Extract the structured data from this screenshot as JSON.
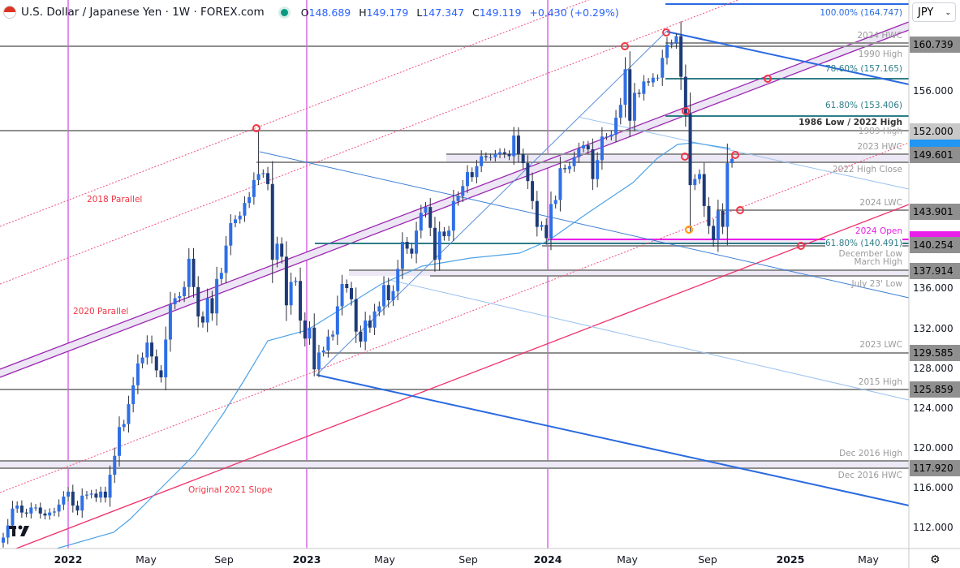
{
  "header": {
    "symbol_title": "U.S. Dollar / Japanese Yen · 1W · FOREX.com",
    "ohlc": {
      "o_label": "O",
      "o": "148.689",
      "h_label": "H",
      "h": "149.179",
      "l_label": "L",
      "l": "147.347",
      "c_label": "C",
      "c": "149.119",
      "change": "+0.430 (+0.29%)"
    }
  },
  "currency_select": {
    "value": "JPY"
  },
  "colors": {
    "bull": "#2f6fe6",
    "bear": "#1d3b78",
    "channel": "#9c27b0",
    "fib": "#2f7d88",
    "level": "#8f8f8f",
    "red": "#f23645",
    "magenta": "#e91ee9",
    "trend_blue": "#2a6ae0",
    "ma": "#4da3e8"
  },
  "level_labels": {
    "fib100": "100.00% (164.747)",
    "hwc2024": "2024 HWC",
    "high1990": "1990 High",
    "fib786": "78.60% (157.165)",
    "fib618_top": "61.80% (153.406)",
    "low1986": "1986 Low / 2022 High",
    "high1989": "1989 High",
    "hwc2023": "2023 HWC",
    "highclose2022": "2022 High Close",
    "lwc2024": "2024 LWC",
    "open2024": "2024 Open",
    "fib618_low": "61.80% (140.491)",
    "dec_low": "December Low",
    "mar_high": "March High",
    "jul23_low": "July 23' Low",
    "lwc2023": "2023 LWC",
    "high2015": "2015 High",
    "dec2016_high": "Dec 2016 High",
    "dec2016_hwc": "Dec 2016 HWC"
  },
  "trend_labels": {
    "p2018": "2018 Parallel",
    "p2020": "2020 Parallel",
    "slope2021": "Original 2021 Slope"
  },
  "price_axis": {
    "ticks": [
      "156.000",
      "136.000",
      "132.000",
      "128.000",
      "124.000",
      "120.000",
      "116.000",
      "112.000"
    ],
    "level_boxes": [
      "160.739",
      "152.000",
      "149.601",
      "143.901",
      "140.254",
      "137.914",
      "129.585",
      "125.859",
      "117.920"
    ]
  },
  "time_axis": [
    "2022",
    "May",
    "Sep",
    "2023",
    "May",
    "Sep",
    "2024",
    "May",
    "Sep",
    "2025",
    "May"
  ],
  "chart_data": {
    "type": "candlestick",
    "interval": "1W",
    "note": "weekly closes approximated from the chart",
    "closes": [
      111.0,
      112.2,
      113.9,
      114.2,
      113.5,
      113.4,
      114.0,
      114.0,
      113.4,
      113.2,
      113.5,
      113.6,
      114.3,
      115.1,
      115.6,
      114.2,
      113.7,
      115.2,
      115.3,
      115.4,
      115.0,
      115.6,
      115.0,
      117.3,
      119.2,
      122.1,
      122.4,
      124.4,
      126.3,
      128.5,
      129.1,
      130.6,
      129.2,
      127.8,
      127.1,
      130.9,
      134.4,
      135.0,
      135.2,
      136.1,
      138.9,
      136.1,
      133.2,
      132.6,
      135.0,
      133.5,
      136.9,
      137.5,
      140.2,
      142.6,
      143.0,
      143.4,
      144.7,
      145.3,
      147.0,
      147.6,
      147.7,
      146.6,
      138.8,
      140.4,
      139.1,
      134.3,
      136.6,
      136.7,
      132.8,
      131.0,
      132.1,
      127.9,
      129.6,
      129.8,
      131.2,
      131.4,
      134.2,
      136.4,
      136.0,
      134.9,
      131.7,
      130.7,
      132.8,
      132.1,
      133.7,
      134.2,
      136.3,
      134.8,
      135.7,
      137.9,
      140.6,
      139.9,
      139.4,
      141.8,
      143.7,
      144.3,
      142.1,
      138.8,
      141.7,
      141.2,
      141.8,
      144.9,
      145.4,
      146.4,
      147.8,
      147.3,
      148.4,
      149.4,
      149.3,
      149.3,
      149.6,
      149.8,
      149.6,
      149.4,
      151.5,
      149.6,
      148.7,
      146.9,
      144.9,
      142.2,
      142.4,
      141.0,
      144.6,
      145.0,
      148.2,
      148.1,
      148.4,
      149.3,
      150.2,
      150.5,
      150.1,
      147.1,
      149.0,
      151.4,
      151.4,
      151.6,
      153.3,
      154.6,
      158.3,
      153.0,
      155.8,
      155.7,
      157.0,
      156.9,
      157.4,
      157.4,
      159.5,
      160.9,
      161.0,
      161.7,
      157.5,
      153.7,
      146.5,
      147.1,
      147.6,
      144.4,
      142.3,
      140.8,
      143.9,
      142.2,
      148.7,
      149.119
    ],
    "notable_extremes": [
      {
        "week": 55,
        "high": 151.95
      },
      {
        "week": 67,
        "low": 127.2
      },
      {
        "week": 135,
        "high": 160.2
      },
      {
        "week": 145,
        "high": 161.95
      },
      {
        "week": 148,
        "low": 141.7
      },
      {
        "week": 154,
        "low": 139.58
      }
    ],
    "ylim": [
      110.5,
      166
    ],
    "xlabel": "",
    "ylabel": "JPY"
  }
}
